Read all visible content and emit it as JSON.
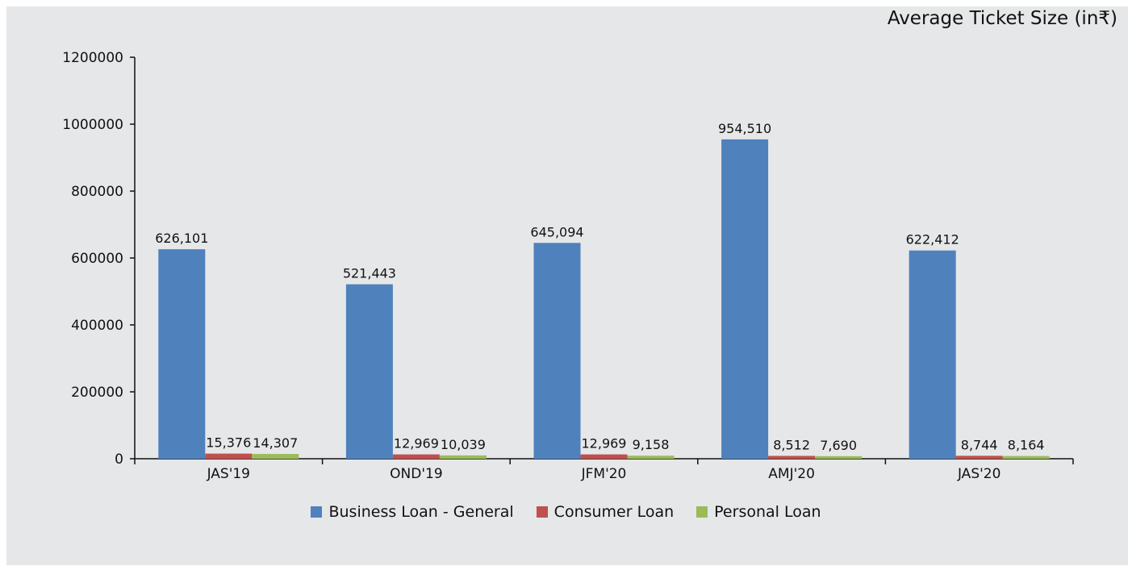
{
  "chart_data": {
    "type": "bar",
    "title": "Average Ticket Size (in₹)",
    "categories": [
      "JAS'19",
      "OND'19",
      "JFM'20",
      "AMJ'20",
      "JAS'20"
    ],
    "series": [
      {
        "name": "Business Loan - General",
        "color": "#4f81bd",
        "values": [
          626101,
          521443,
          645094,
          954510,
          622412
        ],
        "labels": [
          "626,101",
          "521,443",
          "645,094",
          "954,510",
          "622,412"
        ]
      },
      {
        "name": "Consumer Loan",
        "color": "#c0504d",
        "values": [
          15376,
          12969,
          12969,
          8512,
          8744
        ],
        "labels": [
          "15,376",
          "12,969",
          "12,969",
          "8,512",
          "8,744"
        ]
      },
      {
        "name": "Personal Loan",
        "color": "#9bbb59",
        "values": [
          14307,
          10039,
          9158,
          7690,
          8164
        ],
        "labels": [
          "14,307",
          "10,039",
          "9,158",
          "7,690",
          "8,164"
        ]
      }
    ],
    "yticks": [
      "0",
      "200000",
      "400000",
      "600000",
      "800000",
      "1000000",
      "1200000"
    ],
    "ylim": [
      0,
      1200000
    ],
    "grid": false,
    "legend": "bottom-center"
  }
}
